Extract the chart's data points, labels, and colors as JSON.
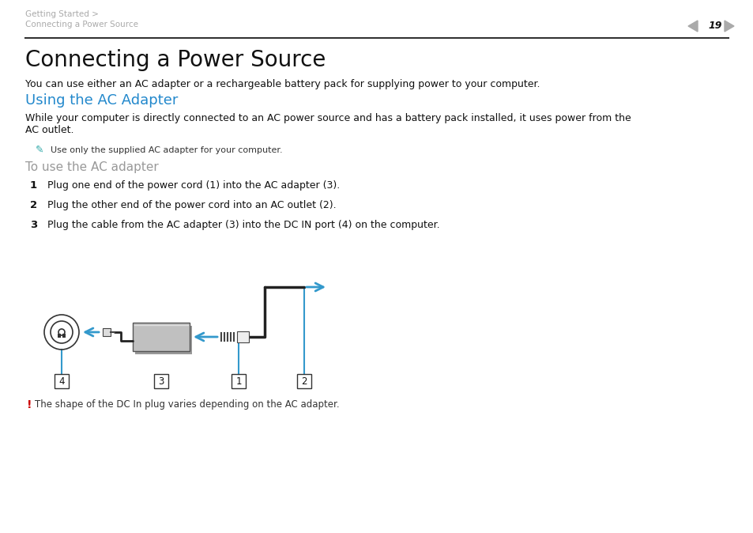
{
  "bg_color": "#ffffff",
  "header_line1": "Getting Started >",
  "header_line2": "Connecting a Power Source",
  "header_page": "19",
  "header_color": "#aaaaaa",
  "separator_color": "#333333",
  "title": "Connecting a Power Source",
  "subtitle": "You can use either an AC adapter or a rechargeable battery pack for supplying power to your computer.",
  "section_color": "#2288cc",
  "section_title": "Using the AC Adapter",
  "body_text1": "While your computer is directly connected to an AC power source and has a battery pack installed, it uses power from the\nAC outlet.",
  "note_color": "#33aaaa",
  "note_text": "Use only the supplied AC adapter for your computer.",
  "subsection_title": "To use the AC adapter",
  "subsection_color": "#999999",
  "step1_num": "1",
  "step1_text": "Plug one end of the power cord (1) into the AC adapter (3).",
  "step2_num": "2",
  "step2_text": "Plug the other end of the power cord into an AC outlet (2).",
  "step3_num": "3",
  "step3_text": "Plug the cable from the AC adapter (3) into the DC IN port (4) on the computer.",
  "warning_color": "#cc0000",
  "warning_bang": "!",
  "warning_text": "The shape of the DC In plug varies depending on the AC adapter.",
  "arrow_color": "#3399cc",
  "dark_color": "#222222",
  "adapter_color": "#bbbbbb",
  "adapter_shadow": "#888888"
}
